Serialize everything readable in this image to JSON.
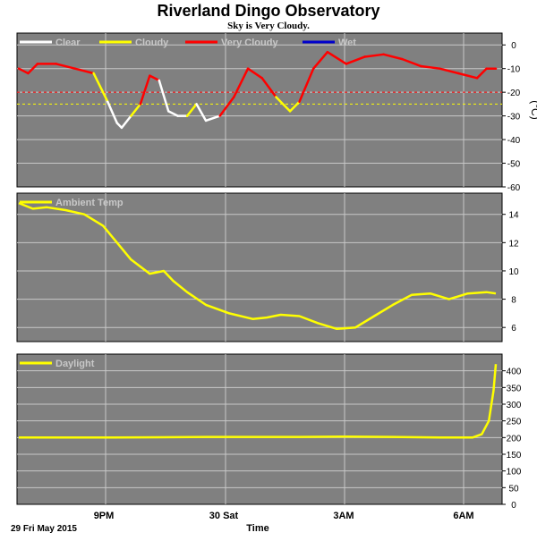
{
  "title": "Riverland Dingo Observatory",
  "subtitle": "Sky is Very Cloudy.",
  "x_axis": {
    "tick_labels": [
      "9PM",
      "30 Sat",
      "3AM",
      "6AM"
    ],
    "date_label": "29 Fri May 2015",
    "label": "Time"
  },
  "colors": {
    "background": "#ffffff",
    "panel": "#808080",
    "grid": "#c8c8c8",
    "legend_text": "#c8c8c8",
    "clear": "#ffffff",
    "cloudy": "#ffff00",
    "very_cloudy": "#ff0000",
    "wet": "#0000cc"
  },
  "chart_data": [
    {
      "type": "line",
      "name": "sky",
      "legend": [
        "Clear",
        "Cloudy",
        "Very Cloudy",
        "Wet"
      ],
      "ylabel": "(°C)",
      "ylim": [
        -60,
        5
      ],
      "yticks": [
        0,
        -10,
        -20,
        -30,
        -40,
        -50,
        -60
      ],
      "xlim": [
        0,
        10
      ],
      "thresholds": [
        {
          "value": -20,
          "color": "#ff0000"
        },
        {
          "value": -25,
          "color": "#ffff00"
        }
      ],
      "x": [
        0,
        0.2,
        0.4,
        0.8,
        1.2,
        1.6,
        1.9,
        2.1,
        2.2,
        2.4,
        2.6,
        2.8,
        3.0,
        3.2,
        3.4,
        3.6,
        3.8,
        4.0,
        4.3,
        4.6,
        4.9,
        5.2,
        5.5,
        5.8,
        6.0,
        6.3,
        6.6,
        7.0,
        7.4,
        7.8,
        8.2,
        8.6,
        9.0,
        9.4,
        9.8,
        10.0,
        10.2
      ],
      "values": [
        -10,
        -12,
        -8,
        -8,
        -10,
        -12,
        -24,
        -33,
        -35,
        -30,
        -25,
        -13,
        -15,
        -28,
        -30,
        -30,
        -25,
        -32,
        -30,
        -22,
        -10,
        -14,
        -22,
        -28,
        -24,
        -10,
        -3,
        -8,
        -5,
        -4,
        -6,
        -9,
        -10,
        -12,
        -14,
        -10,
        -10
      ],
      "status": [
        "very_cloudy",
        "very_cloudy",
        "very_cloudy",
        "very_cloudy",
        "very_cloudy",
        "very_cloudy",
        "cloudy",
        "clear",
        "clear",
        "clear",
        "cloudy",
        "very_cloudy",
        "very_cloudy",
        "clear",
        "clear",
        "clear",
        "cloudy",
        "clear",
        "clear",
        "very_cloudy",
        "very_cloudy",
        "very_cloudy",
        "very_cloudy",
        "cloudy",
        "cloudy",
        "very_cloudy",
        "very_cloudy",
        "very_cloudy",
        "very_cloudy",
        "very_cloudy",
        "very_cloudy",
        "very_cloudy",
        "very_cloudy",
        "very_cloudy",
        "very_cloudy",
        "very_cloudy",
        "very_cloudy"
      ]
    },
    {
      "type": "line",
      "name": "ambient",
      "legend": [
        "Ambient Temp"
      ],
      "ylim": [
        5,
        15.5
      ],
      "yticks": [
        6,
        8,
        10,
        12,
        14
      ],
      "xlim": [
        0,
        10
      ],
      "color": "#ffff00",
      "x": [
        0,
        0.3,
        0.6,
        1.0,
        1.4,
        1.8,
        2.1,
        2.4,
        2.8,
        3.1,
        3.3,
        3.6,
        4.0,
        4.5,
        5.0,
        5.3,
        5.6,
        6.0,
        6.4,
        6.8,
        7.2,
        7.6,
        8.0,
        8.4,
        8.8,
        9.2,
        9.6,
        10.0,
        10.2
      ],
      "values": [
        14.8,
        14.4,
        14.5,
        14.3,
        14.0,
        13.2,
        12.0,
        10.8,
        9.8,
        10.0,
        9.3,
        8.5,
        7.6,
        7.0,
        6.6,
        6.7,
        6.9,
        6.8,
        6.3,
        5.9,
        6.0,
        6.8,
        7.6,
        8.3,
        8.4,
        8.0,
        8.4,
        8.5,
        8.4
      ]
    },
    {
      "type": "line",
      "name": "daylight",
      "legend": [
        "Daylight"
      ],
      "ylim": [
        0,
        450
      ],
      "yticks": [
        0,
        50,
        100,
        150,
        200,
        250,
        300,
        350,
        400
      ],
      "xlim": [
        0,
        10
      ],
      "color": "#ffff00",
      "x": [
        0,
        1,
        2,
        3,
        4,
        5,
        6,
        7,
        8,
        9,
        9.7,
        9.9,
        10.05,
        10.15,
        10.2
      ],
      "values": [
        200,
        200,
        200,
        201,
        202,
        202,
        202,
        203,
        202,
        200,
        200,
        210,
        250,
        340,
        420
      ]
    }
  ]
}
